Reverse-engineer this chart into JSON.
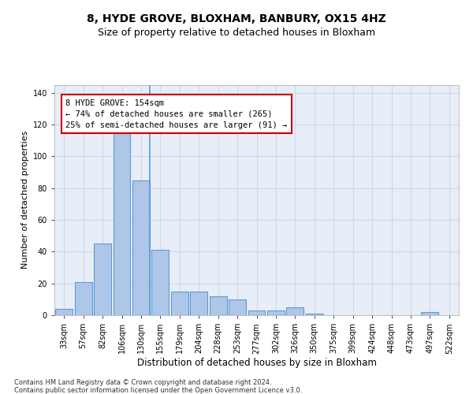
{
  "title1": "8, HYDE GROVE, BLOXHAM, BANBURY, OX15 4HZ",
  "title2": "Size of property relative to detached houses in Bloxham",
  "xlabel": "Distribution of detached houses by size in Bloxham",
  "ylabel": "Number of detached properties",
  "footnote1": "Contains HM Land Registry data © Crown copyright and database right 2024.",
  "footnote2": "Contains public sector information licensed under the Open Government Licence v3.0.",
  "categories": [
    "33sqm",
    "57sqm",
    "82sqm",
    "106sqm",
    "130sqm",
    "155sqm",
    "179sqm",
    "204sqm",
    "228sqm",
    "253sqm",
    "277sqm",
    "302sqm",
    "326sqm",
    "350sqm",
    "375sqm",
    "399sqm",
    "424sqm",
    "448sqm",
    "473sqm",
    "497sqm",
    "522sqm"
  ],
  "values": [
    4,
    21,
    45,
    115,
    85,
    41,
    15,
    15,
    12,
    10,
    3,
    3,
    5,
    1,
    0,
    0,
    0,
    0,
    0,
    2,
    0
  ],
  "bar_color": "#aec6e8",
  "bar_edge_color": "#5b9bd5",
  "bar_edge_width": 0.8,
  "vline_x": 4.5,
  "annotation_text": "8 HYDE GROVE: 154sqm\n← 74% of detached houses are smaller (265)\n25% of semi-detached houses are larger (91) →",
  "annotation_box_color": "#ffffff",
  "annotation_box_edgecolor": "#cc0000",
  "ylim": [
    0,
    145
  ],
  "yticks": [
    0,
    20,
    40,
    60,
    80,
    100,
    120,
    140
  ],
  "grid_color": "#d0d8e8",
  "bg_color": "#e8eef8",
  "fig_bg_color": "#ffffff",
  "title1_fontsize": 10,
  "title2_fontsize": 9,
  "xlabel_fontsize": 8.5,
  "ylabel_fontsize": 8,
  "tick_fontsize": 7,
  "annotation_fontsize": 7.5,
  "footnote_fontsize": 6
}
